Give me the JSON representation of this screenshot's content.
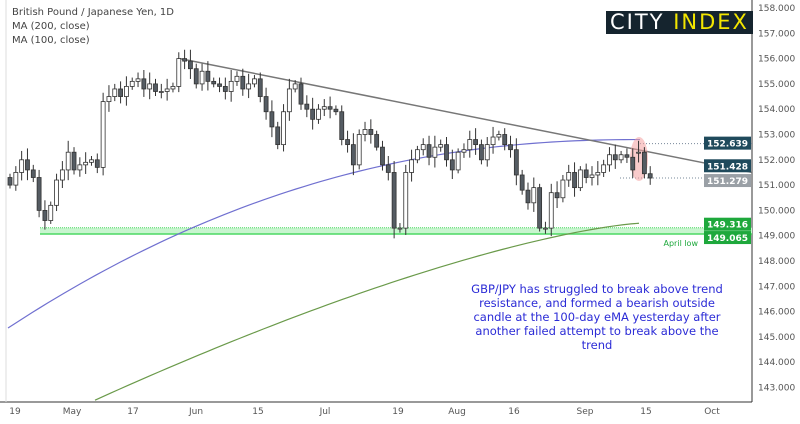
{
  "header": {
    "title": "British Pound / Japanese Yen, 1D",
    "ma1": "MA (200, close)",
    "ma2": "MA (100, close)"
  },
  "logo": {
    "part1": "CITY ",
    "part2": "INDEX"
  },
  "annotation": "GBP/JPY has struggled to break above trend resistance, and formed a bearish outside candle at the 100-day eMA yesterday after another failed attempt to break above the trend",
  "april_low_label": "April low",
  "colors": {
    "up": "#ffffff",
    "down": "#555c63",
    "ma100": "#7070d0",
    "ma200": "#6a9a4a",
    "trend": "#777777",
    "zone": "#4cd964"
  },
  "chart_data": {
    "type": "candlestick",
    "title": "British Pound / Japanese Yen, 1D",
    "ylim": [
      142.5,
      158.2
    ],
    "y_ticks": [
      143,
      144,
      145,
      146,
      147,
      148,
      149,
      150,
      151,
      152,
      153,
      154,
      155,
      156,
      157,
      158
    ],
    "x_ticks": [
      "19",
      "May",
      "17",
      "Jun",
      "15",
      "Jul",
      "19",
      "Aug",
      "16",
      "Sep",
      "15",
      "Oct"
    ],
    "closes": [
      151.0,
      151.5,
      152.0,
      151.6,
      151.3,
      150.0,
      149.6,
      150.2,
      151.2,
      151.6,
      152.3,
      151.6,
      151.8,
      151.9,
      152.0,
      151.7,
      154.3,
      154.5,
      154.8,
      154.5,
      154.9,
      155.1,
      155.2,
      154.8,
      155.0,
      154.7,
      154.7,
      154.8,
      154.9,
      156.0,
      155.9,
      155.6,
      155.0,
      155.5,
      155.1,
      155.0,
      154.9,
      154.7,
      155.1,
      155.3,
      154.8,
      155.0,
      155.2,
      154.5,
      153.9,
      153.3,
      152.6,
      153.9,
      154.8,
      155.0,
      154.2,
      154.0,
      153.6,
      154.0,
      154.1,
      154.0,
      153.9,
      152.8,
      152.6,
      151.8,
      153.0,
      153.2,
      153.0,
      152.5,
      151.8,
      151.5,
      149.3,
      149.3,
      151.5,
      152.0,
      152.4,
      152.6,
      152.1,
      152.5,
      152.6,
      152.0,
      151.6,
      152.3,
      152.4,
      152.8,
      152.6,
      152.0,
      152.6,
      152.9,
      153.0,
      152.6,
      152.4,
      151.4,
      150.8,
      150.3,
      150.9,
      149.3,
      149.3,
      150.7,
      150.5,
      151.2,
      151.5,
      150.9,
      151.6,
      151.3,
      151.4,
      151.5,
      151.8,
      152.2,
      152.0,
      152.2,
      152.1,
      151.6,
      152.3,
      151.45,
      151.28
    ],
    "ma100": {
      "start": 145.35,
      "end": 152.8
    },
    "ma200": {
      "start": 142.5,
      "end": 149.5
    },
    "trendline": {
      "start": 156.0,
      "end": 151.5
    },
    "price_labels": [
      {
        "value": "152.639",
        "color": "#1f4a5c"
      },
      {
        "value": "151.428",
        "color": "#1f4a5c"
      },
      {
        "value": "151.279",
        "color": "#9aa0a6"
      },
      {
        "value": "149.316",
        "color": "#1ea83c"
      },
      {
        "value": "149.065",
        "color": "#1ea83c"
      }
    ]
  }
}
